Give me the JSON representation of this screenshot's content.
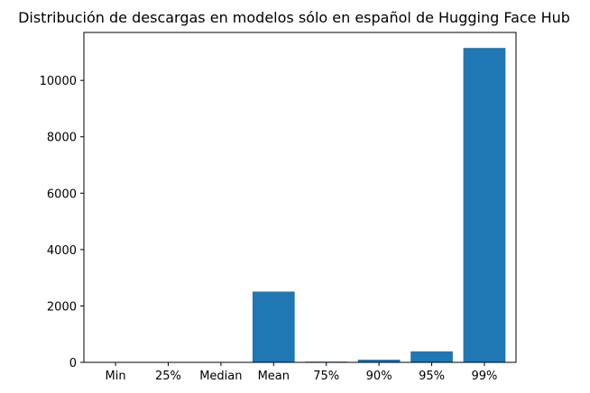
{
  "chart_data": {
    "type": "bar",
    "title": "Distribución de descargas en modelos sólo en español de Hugging Face Hub",
    "xlabel": "",
    "ylabel": "",
    "categories": [
      "Min",
      "25%",
      "Median",
      "Mean",
      "75%",
      "90%",
      "95%",
      "99%"
    ],
    "values": [
      0,
      1,
      4,
      2510,
      25,
      95,
      390,
      11150
    ],
    "ylim": [
      0,
      11700
    ],
    "yticks": [
      0,
      2000,
      4000,
      6000,
      8000,
      10000
    ],
    "grid": false,
    "legend": "none",
    "bar_color": "#1f77b4"
  }
}
